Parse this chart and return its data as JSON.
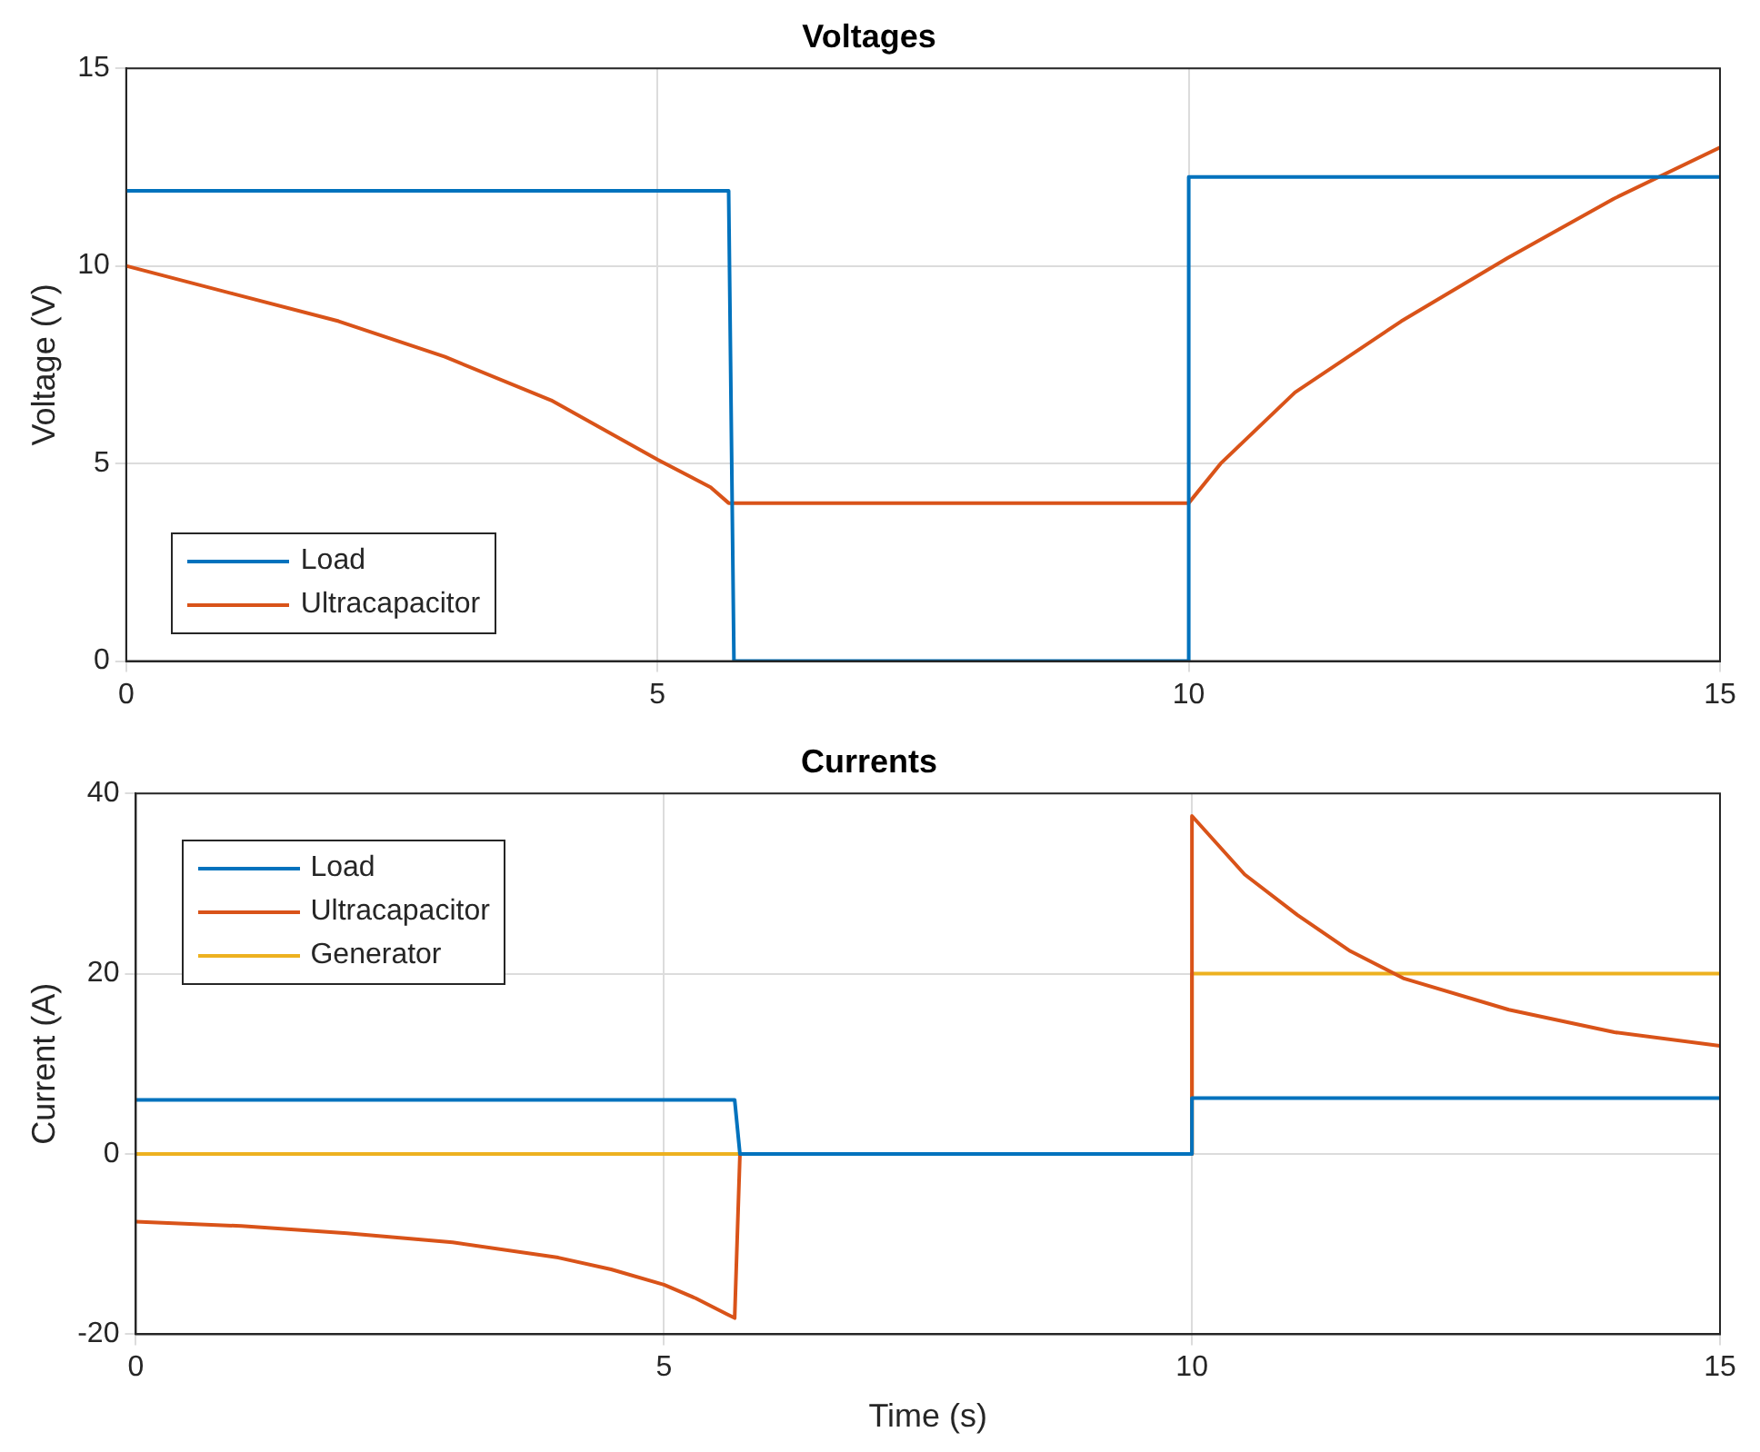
{
  "chart_data": [
    {
      "type": "line",
      "title": "Voltages",
      "ylabel": "Voltage (V)",
      "xlim": [
        0,
        15
      ],
      "xticks": [
        0,
        5,
        10,
        15
      ],
      "ylim": [
        0,
        15
      ],
      "yticks": [
        0,
        5,
        10,
        15
      ],
      "grid": true,
      "legend": "bottom left",
      "marker": "none",
      "line_style": "solid",
      "series": [
        {
          "name": "Load",
          "color": "#0072bd",
          "x": [
            0,
            5.67,
            5.72,
            10,
            10,
            15
          ],
          "values": [
            11.9,
            11.9,
            0,
            0,
            12.25,
            12.25
          ]
        },
        {
          "name": "Ultracapacitor",
          "color": "#d95319",
          "x": [
            0,
            1,
            2,
            3,
            4,
            5,
            5.5,
            5.67,
            10,
            10.3,
            11,
            12,
            13,
            14,
            15
          ],
          "values": [
            10,
            9.3,
            8.6,
            7.7,
            6.6,
            5.1,
            4.4,
            4,
            4,
            5,
            6.8,
            8.6,
            10.2,
            11.7,
            13
          ]
        }
      ]
    },
    {
      "type": "line",
      "title": "Currents",
      "xlabel": "Time (s)",
      "ylabel": "Current (A)",
      "xlim": [
        0,
        15
      ],
      "xticks": [
        0,
        5,
        10,
        15
      ],
      "ylim": [
        -20,
        40
      ],
      "yticks": [
        -20,
        0,
        20,
        40
      ],
      "grid": true,
      "legend": "top left",
      "marker": "none",
      "line_style": "solid",
      "series": [
        {
          "name": "Load",
          "color": "#0072bd",
          "x": [
            0,
            5.67,
            5.72,
            10,
            10,
            15
          ],
          "values": [
            6,
            6,
            0,
            0,
            6.2,
            6.2
          ]
        },
        {
          "name": "Ultracapacitor",
          "color": "#d95319",
          "x": [
            0,
            1,
            2,
            3,
            4,
            4.5,
            5,
            5.3,
            5.6,
            5.67,
            5.72,
            10,
            10,
            10.5,
            11,
            11.5,
            12,
            13,
            14,
            15
          ],
          "values": [
            -7.5,
            -8,
            -8.8,
            -9.8,
            -11.5,
            -12.8,
            -14.5,
            -16,
            -17.8,
            -18.2,
            0,
            0,
            37.5,
            31,
            26.5,
            22.5,
            19.5,
            16,
            13.5,
            12
          ]
        },
        {
          "name": "Generator",
          "color": "#edb120",
          "x": [
            0,
            10,
            10,
            15
          ],
          "values": [
            0,
            0,
            20,
            20
          ]
        }
      ]
    }
  ]
}
